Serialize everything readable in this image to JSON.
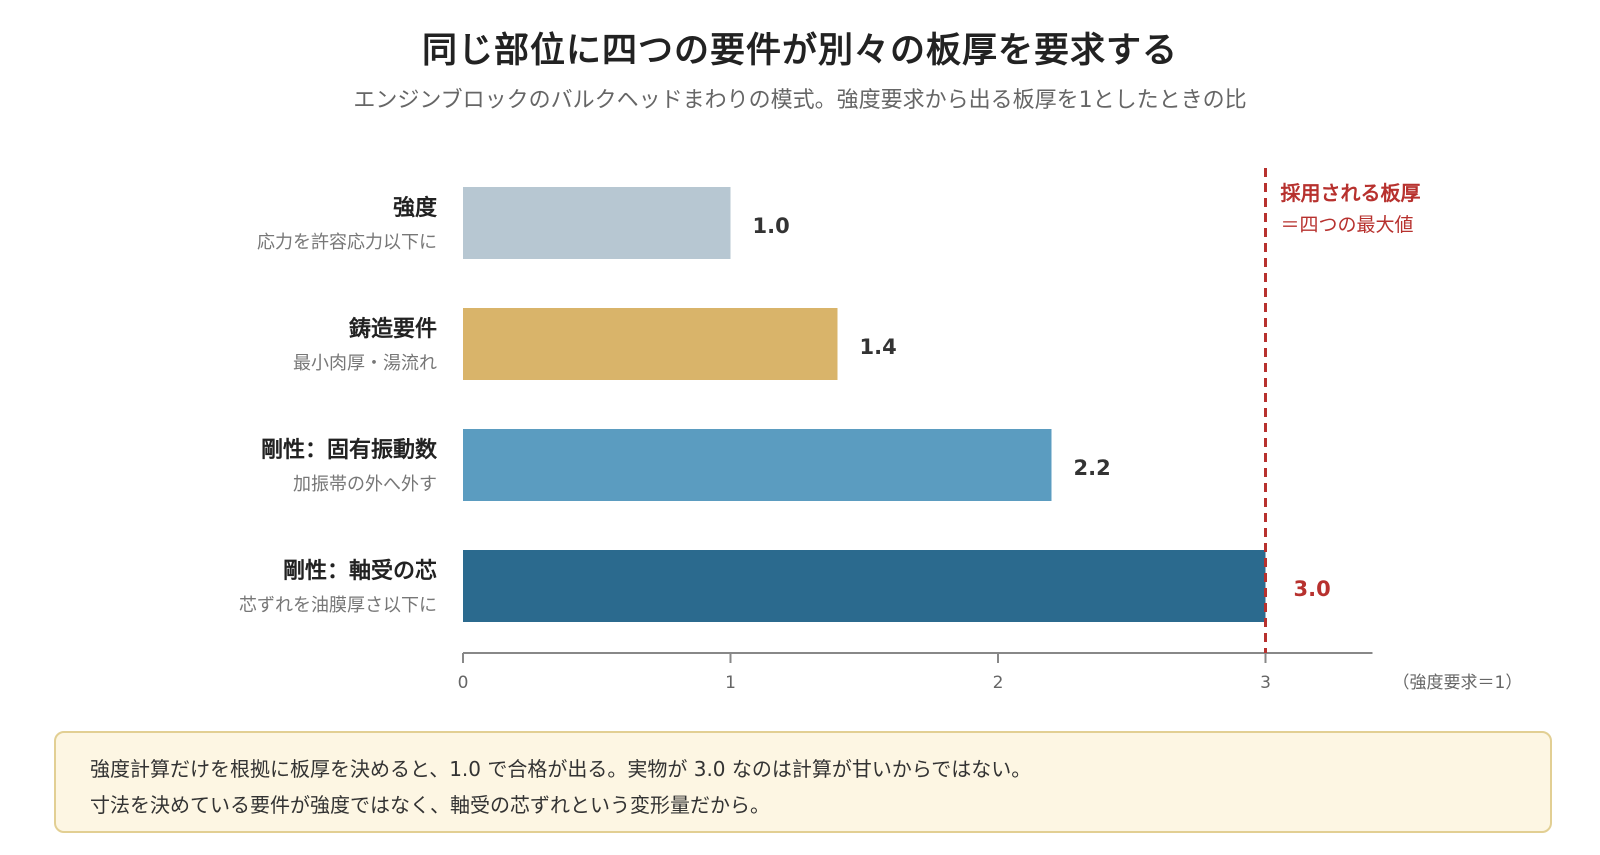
{
  "title": "同じ部位に四つの要件が別々の板厚を要求する",
  "subtitle": "エンジンブロックのバルクヘッドまわりの模式。強度要求から出る板厚を1としたときの比",
  "chart_data": {
    "type": "bar",
    "orientation": "horizontal",
    "categories": [
      "強度",
      "鋳造要件",
      "剛性：固有振動数",
      "剛性：軸受の芯"
    ],
    "category_notes": [
      "応力を許容応力以下に",
      "最小肉厚・湯流れ",
      "加振帯の外へ外す",
      "芯ずれを油膜厚さ以下に"
    ],
    "values": [
      1.0,
      1.4,
      2.2,
      3.0
    ],
    "value_labels": [
      "1.0",
      "1.4",
      "2.2",
      "3.0"
    ],
    "colors": [
      "#b7c7d2",
      "#d9b46a",
      "#5b9cc0",
      "#2b6a8e"
    ],
    "highlight_index": 3,
    "highlight_color": "#b7312e",
    "xlim": [
      0,
      3.4
    ],
    "xticks": [
      "0",
      "1",
      "2",
      "3"
    ],
    "xlabel": "（強度要求＝1）",
    "grid": false,
    "reference_line": {
      "value": 3,
      "label_main": "採用される板厚",
      "label_sub": "＝四つの最大値",
      "color": "#b7312e"
    }
  },
  "note": {
    "line1": "強度計算だけを根拠に板厚を決めると、1.0 で合格が出る。実物が 3.0 なのは計算が甘いからではない。",
    "line2": "寸法を決めている要件が強度ではなく、軸受の芯ずれという変形量だから。"
  }
}
